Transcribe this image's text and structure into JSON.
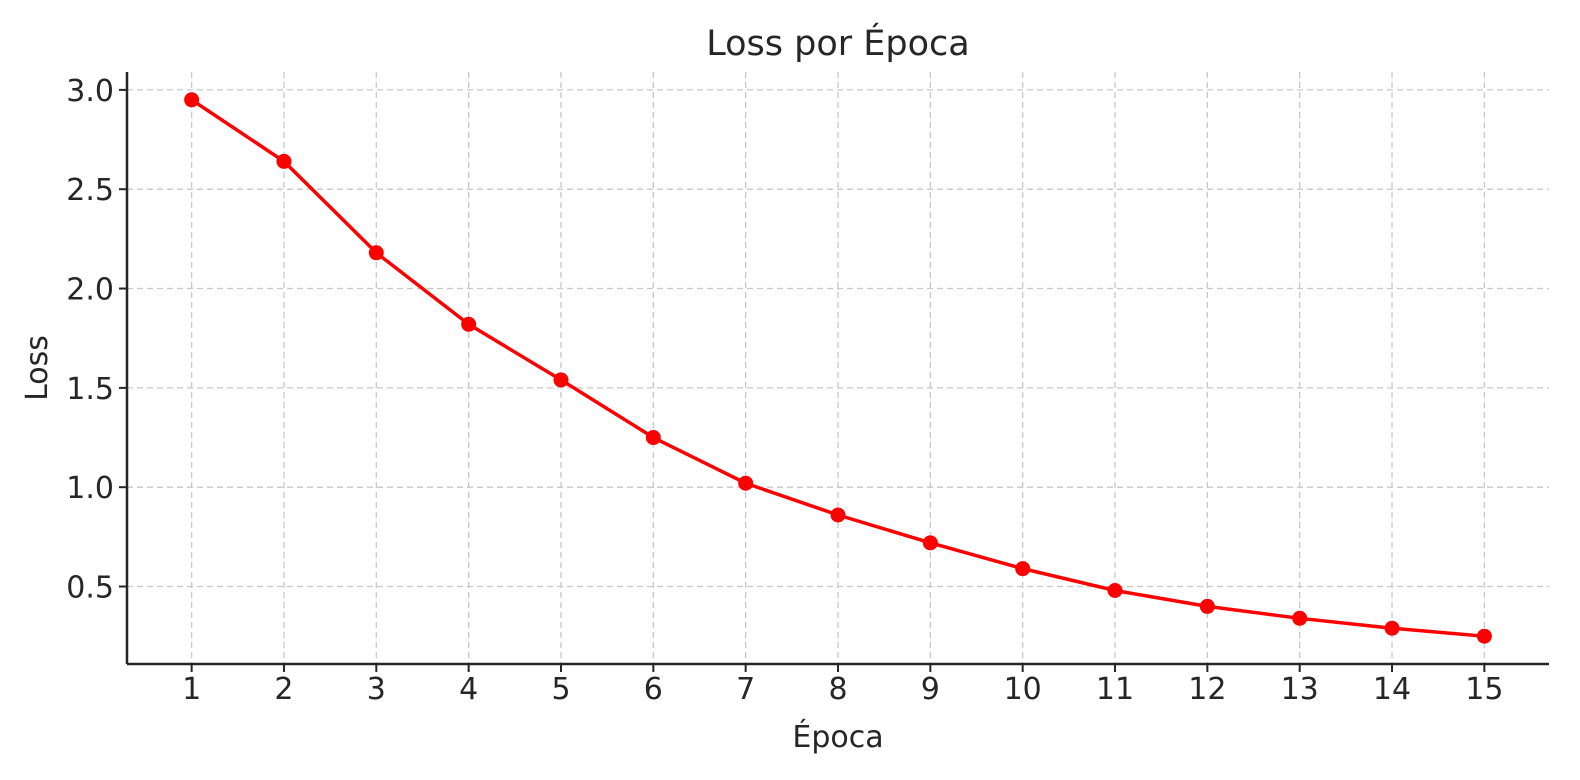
{
  "chart_data": {
    "type": "line",
    "title": "Loss por Época",
    "xlabel": "Época",
    "ylabel": "Loss",
    "x": [
      1,
      2,
      3,
      4,
      5,
      6,
      7,
      8,
      9,
      10,
      11,
      12,
      13,
      14,
      15
    ],
    "x_tick_labels": [
      "1",
      "2",
      "3",
      "4",
      "5",
      "6",
      "7",
      "8",
      "9",
      "10",
      "11",
      "12",
      "13",
      "14",
      "15"
    ],
    "y_ticks": [
      0.5,
      1.0,
      1.5,
      2.0,
      2.5,
      3.0
    ],
    "y_tick_labels": [
      "0.5",
      "1.0",
      "1.5",
      "2.0",
      "2.5",
      "3.0"
    ],
    "xlim": [
      0.3,
      15.7
    ],
    "ylim": [
      0.11,
      3.09
    ],
    "grid": true,
    "series": [
      {
        "values": [
          2.95,
          2.64,
          2.18,
          1.82,
          1.54,
          1.25,
          1.02,
          0.86,
          0.72,
          0.59,
          0.48,
          0.4,
          0.34,
          0.29,
          0.25
        ],
        "color": "#ff0000",
        "marker": "circle"
      }
    ]
  }
}
